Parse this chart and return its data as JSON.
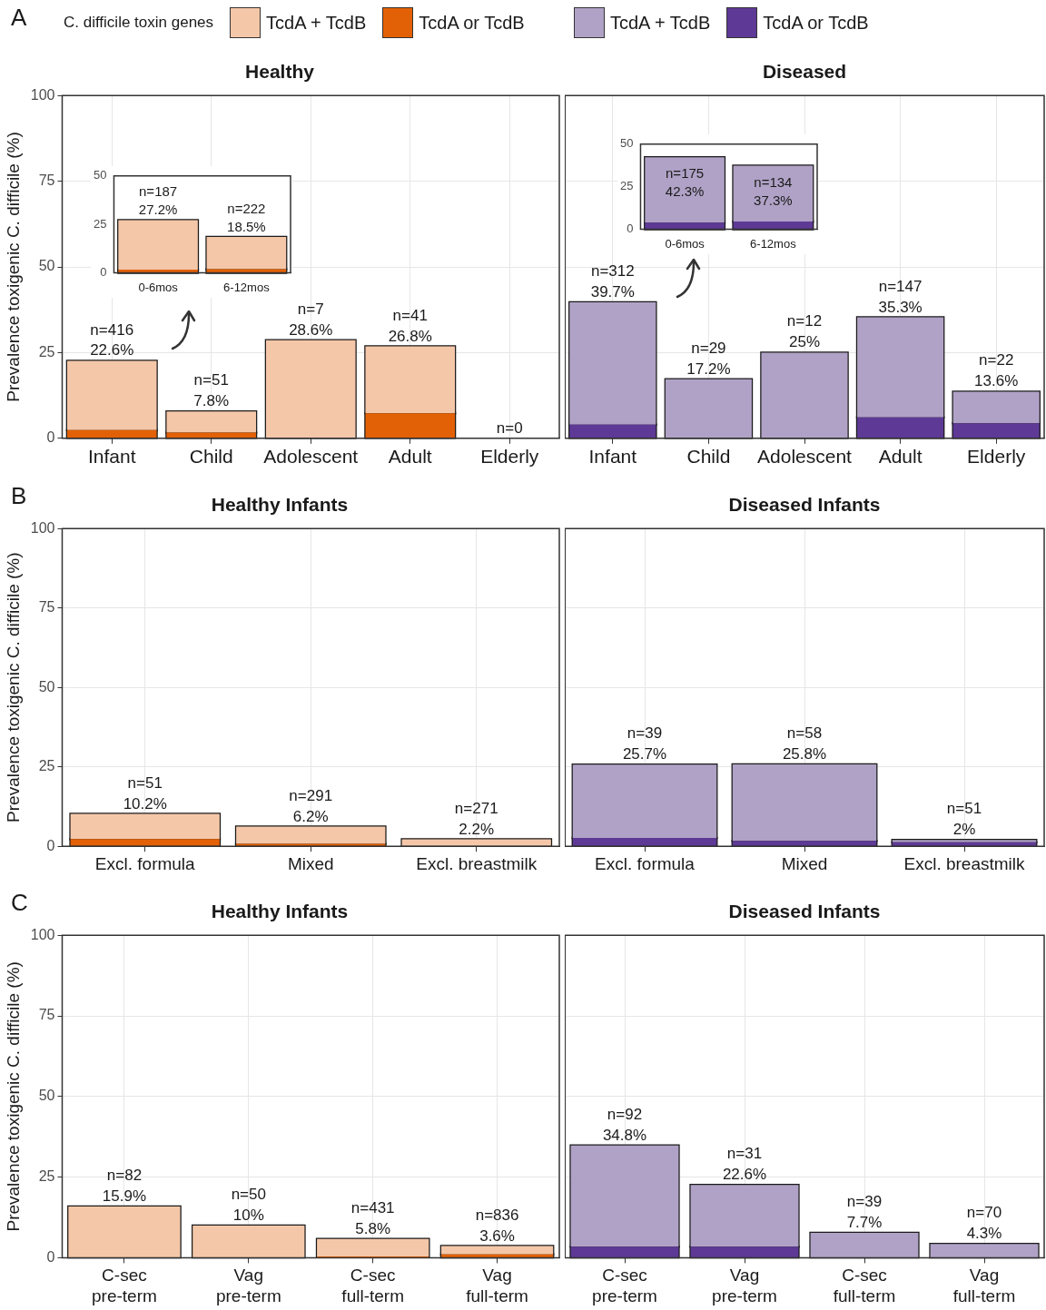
{
  "chart_data": [
    {
      "type": "bar",
      "title": "Healthy",
      "annotations": [
        "A"
      ],
      "legend_title": "C. difficile toxin genes",
      "legend": "top",
      "ylabel": "Prevalence toxigenic C. difficile (%)",
      "stacked": true,
      "grid": true,
      "ylim": [
        0,
        100
      ],
      "yticks": [
        0,
        25,
        50,
        75,
        100
      ],
      "categories": [
        "Infant",
        "Child",
        "Adolescent",
        "Adult",
        "Elderly"
      ],
      "series": [
        {
          "name": "TcdA or TcdB",
          "color": "#e36106",
          "values": [
            2.4,
            1.7,
            0,
            7.3,
            0
          ]
        },
        {
          "name": "TcdA + TcdB",
          "color": "#f5c7a9",
          "values": [
            20.2,
            6.1,
            28.6,
            19.5,
            0
          ]
        }
      ],
      "totals": [
        "n=416\n22.6%",
        "n=51\n7.8%",
        "n=7\n28.6%",
        "n=41\n26.8%",
        "n=0"
      ]
    },
    {
      "type": "bar",
      "title": "Diseased",
      "legend": "top",
      "stacked": true,
      "grid": true,
      "tick_labels": "x",
      "ylim": [
        0,
        100
      ],
      "yticks": [
        0,
        25,
        50,
        75,
        100
      ],
      "categories": [
        "Infant",
        "Child",
        "Adolescent",
        "Adult",
        "Elderly"
      ],
      "series": [
        {
          "name": "TcdA or TcdB",
          "color": "#5e3a96",
          "values": [
            4.0,
            0,
            0,
            6.1,
            4.4
          ]
        },
        {
          "name": "TcdA + TcdB",
          "color": "#b0a2c6",
          "values": [
            35.7,
            17.2,
            25,
            29.2,
            9.2
          ]
        }
      ],
      "totals": [
        "n=312\n39.7%",
        "n=29\n17.2%",
        "n=12\n25%",
        "n=147\n35.3%",
        "n=22\n13.6%"
      ]
    },
    {
      "type": "bar",
      "title": "Healthy Infants",
      "annotations": [
        "B"
      ],
      "ylabel": "Prevalence toxigenic C. difficile (%)",
      "stacked": true,
      "grid": true,
      "ylim": [
        0,
        100
      ],
      "yticks": [
        0,
        25,
        50,
        75,
        100
      ],
      "categories": [
        "Excl. formula",
        "Mixed",
        "Excl. breastmilk"
      ],
      "series": [
        {
          "color": "#e36106",
          "values": [
            2.3,
            0.8,
            0
          ]
        },
        {
          "color": "#f5c7a9",
          "values": [
            7.9,
            5.4,
            2.2
          ]
        }
      ],
      "totals": [
        "n=51\n10.2%",
        "n=291\n6.2%",
        "n=271\n2.2%"
      ]
    },
    {
      "type": "bar",
      "title": "Diseased Infants",
      "stacked": true,
      "grid": true,
      "tick_labels": "x",
      "ylim": [
        0,
        100
      ],
      "yticks": [
        0,
        25,
        50,
        75,
        100
      ],
      "categories": [
        "Excl. formula",
        "Mixed",
        "Excl. breastmilk"
      ],
      "series": [
        {
          "color": "#5e3a96",
          "values": [
            2.6,
            1.7,
            1.3
          ]
        },
        {
          "color": "#b0a2c6",
          "values": [
            23.1,
            24.1,
            0.7
          ]
        }
      ],
      "totals": [
        "n=39\n25.7%",
        "n=58\n25.8%",
        "n=51\n2%"
      ]
    },
    {
      "type": "bar",
      "title": "Healthy Infants",
      "annotations": [
        "C"
      ],
      "ylabel": "Prevalence toxigenic C. difficile (%)",
      "stacked": true,
      "grid": true,
      "ylim": [
        0,
        100
      ],
      "yticks": [
        0,
        25,
        50,
        75,
        100
      ],
      "categories": [
        "C-sec\npre-term",
        "Vag\npre-term",
        "C-sec\nfull-term",
        "Vag\nfull-term"
      ],
      "series": [
        {
          "color": "#e36106",
          "values": [
            0,
            0,
            0.4,
            1.0
          ]
        },
        {
          "color": "#f5c7a9",
          "values": [
            15.9,
            10,
            5.4,
            2.6
          ]
        }
      ],
      "totals": [
        "n=82\n15.9%",
        "n=50\n10%",
        "n=431\n5.8%",
        "n=836\n3.6%"
      ]
    },
    {
      "type": "bar",
      "title": "Diseased Infants",
      "stacked": true,
      "grid": true,
      "tick_labels": "x",
      "ylim": [
        0,
        100
      ],
      "yticks": [
        0,
        25,
        50,
        75,
        100
      ],
      "categories": [
        "C-sec\npre-term",
        "Vag\npre-term",
        "C-sec\nfull-term",
        "Vag\nfull-term"
      ],
      "series": [
        {
          "color": "#5e3a96",
          "values": [
            3.4,
            3.4,
            0,
            0
          ]
        },
        {
          "color": "#b0a2c6",
          "values": [
            31.4,
            19.2,
            7.7,
            4.3
          ]
        }
      ],
      "totals": [
        "n=92\n34.8%",
        "n=31\n22.6%",
        "n=39\n7.7%",
        "n=70\n4.3%"
      ]
    },
    {
      "type": "bar",
      "stacked": true,
      "ylim": [
        0,
        50
      ],
      "yticks": [
        0,
        25,
        50
      ],
      "categories": [
        "0-6mos",
        "6-12mos"
      ],
      "series": [
        {
          "color": "#e36106",
          "values": [
            1.6,
            1.8
          ]
        },
        {
          "color": "#f5c7a9",
          "values": [
            25.6,
            16.7
          ]
        }
      ],
      "totals": [
        "n=187\n27.2%",
        "n=222\n18.5%"
      ]
    },
    {
      "type": "bar",
      "stacked": true,
      "ylim": [
        0,
        50
      ],
      "yticks": [
        0,
        25,
        50
      ],
      "categories": [
        "0-6mos",
        "6-12mos"
      ],
      "series": [
        {
          "color": "#5e3a96",
          "values": [
            3.8,
            4.5
          ]
        },
        {
          "color": "#b0a2c6",
          "values": [
            38.5,
            32.8
          ]
        }
      ],
      "totals": [
        "n=175\n42.3%",
        "n=134\n37.3%"
      ]
    }
  ]
}
